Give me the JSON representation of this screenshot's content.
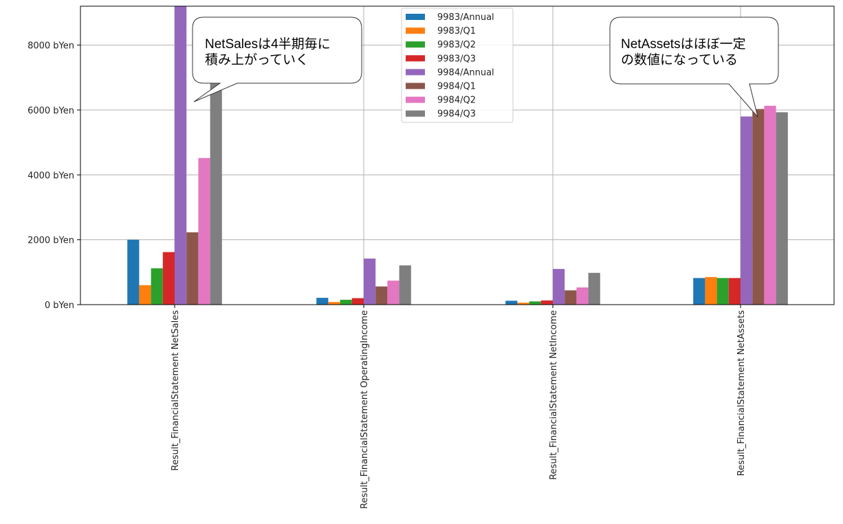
{
  "chart_data": {
    "type": "bar",
    "title": "",
    "xlabel": "",
    "ylabel": "",
    "y_unit_suffix": " bYen",
    "ylim": [
      0,
      9200
    ],
    "yticks": [
      0,
      2000,
      4000,
      6000,
      8000
    ],
    "grid": true,
    "legend_position": "upper-center",
    "categories": [
      "Result_FinancialStatement NetSales",
      "Result_FinancialStatement OperatingIncome",
      "Result_FinancialStatement NetIncome",
      "Result_FinancialStatement NetAssets"
    ],
    "series": [
      {
        "name": "9983/Annual",
        "color": "#1f77b4",
        "values": [
          2000,
          210,
          120,
          820
        ]
      },
      {
        "name": "9983/Q1",
        "color": "#ff7f0e",
        "values": [
          600,
          80,
          60,
          850
        ]
      },
      {
        "name": "9983/Q2",
        "color": "#2ca02c",
        "values": [
          1120,
          150,
          100,
          820
        ]
      },
      {
        "name": "9983/Q3",
        "color": "#d62728",
        "values": [
          1620,
          200,
          130,
          820
        ]
      },
      {
        "name": "9984/Annual",
        "color": "#9467bd",
        "values": [
          9200,
          1420,
          1100,
          5800
        ]
      },
      {
        "name": "9984/Q1",
        "color": "#8c564b",
        "values": [
          2230,
          560,
          440,
          6030
        ]
      },
      {
        "name": "9984/Q2",
        "color": "#e377c2",
        "values": [
          4520,
          740,
          530,
          6130
        ]
      },
      {
        "name": "9984/Q3",
        "color": "#7f7f7f",
        "values": [
          6950,
          1210,
          980,
          5930
        ]
      }
    ],
    "annotations": [
      {
        "lines": [
          "NetSalesは4半期毎に",
          "積み上がっていく"
        ]
      },
      {
        "lines": [
          "NetAssetsはほぼ一定",
          "の数値になっている"
        ]
      }
    ]
  }
}
